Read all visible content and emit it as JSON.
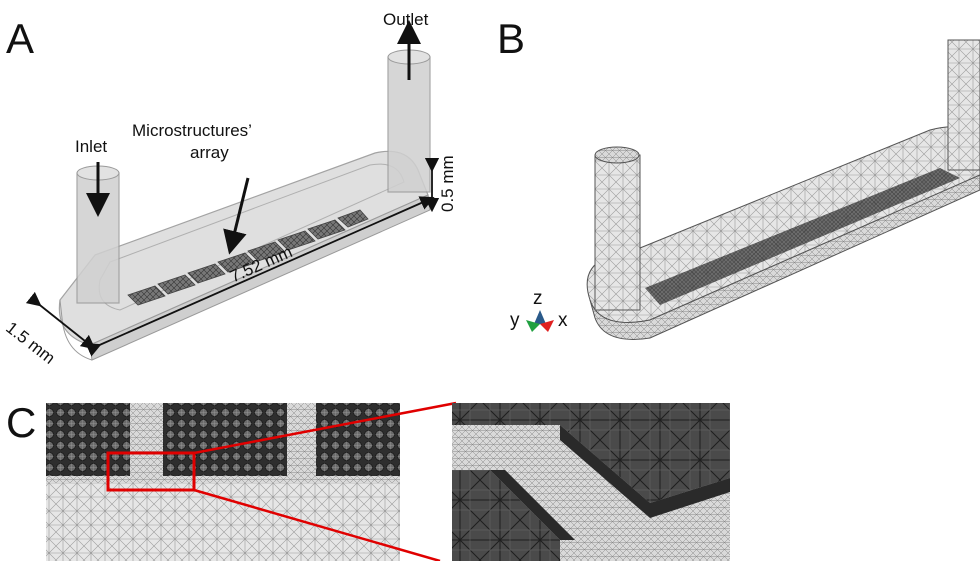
{
  "panels": {
    "a": {
      "letter": "A",
      "outlet": "Outlet",
      "inlet": "Inlet",
      "array_line1": "Microstructures’",
      "array_line2": "array",
      "length": "7.52 mm",
      "width": "1.5 mm",
      "height": "0.5 mm"
    },
    "b": {
      "letter": "B",
      "axis_z": "z",
      "axis_y": "y",
      "axis_x": "x"
    },
    "c": {
      "letter": "C"
    }
  },
  "colors": {
    "channel_fill": "#dcdcdc",
    "channel_stroke": "#9a9a9a",
    "mesh_dark": "#3a3a3a",
    "zoom_frame": "#e00000",
    "axis_x": "#e02020",
    "axis_y": "#20a040",
    "axis_z": "#2a5a8a"
  }
}
